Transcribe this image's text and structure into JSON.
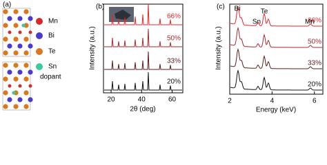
{
  "panels": {
    "a": {
      "label": "(a)",
      "legend": [
        "Mn",
        "Bi",
        "Te",
        "Sn"
      ],
      "dopant": "dopant"
    },
    "b": {
      "label": "(b)",
      "ylabel": "Intensity (a.u.)",
      "xlabel": "2θ (deg)",
      "xlim": [
        15,
        67
      ],
      "xticks": [
        20,
        40,
        60
      ],
      "series": [
        "66%",
        "50%",
        "33%",
        "20%"
      ]
    },
    "c": {
      "label": "(c)",
      "ylabel": "Intensity (a.u.)",
      "xlabel": "Energy (keV)",
      "xlim": [
        2,
        6.4
      ],
      "xticks": [
        2,
        4,
        6
      ],
      "peaks": [
        "Bi",
        "Te",
        "Sn",
        "Mn"
      ],
      "series": [
        "66%",
        "50%",
        "33%",
        "20%"
      ]
    }
  }
}
